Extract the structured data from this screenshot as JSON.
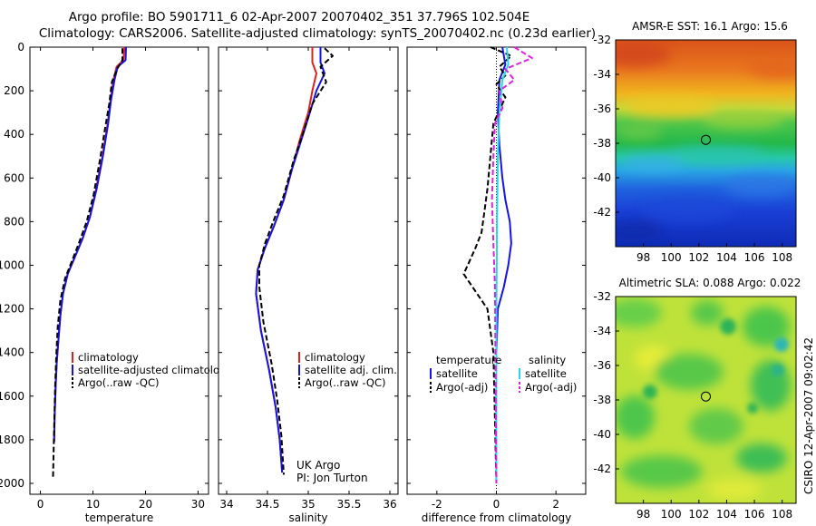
{
  "title_line1": "Argo profile: BO 5901711_6 02-Apr-2007 20070402_351 37.796S 102.504E",
  "title_line2": "Climatology: CARS2006. Satellite-adjusted climatology: synTS_20070402.nc (0.23d earlier)",
  "sst_title": "AMSR-E SST: 16.1 Argo: 15.6",
  "sla_title": "Altimetric SLA: 0.088 Argo: 0.022",
  "credit": "CSIRO 12-Apr-2007 09:02:42",
  "colors": {
    "climatology": "#e0201a",
    "satellite": "#1414e6",
    "argo": "#000000",
    "satellite_salinity": "#22d8ee",
    "argo_salinity": "#e020e0"
  },
  "chart_data": [
    {
      "type": "line",
      "name": "temperature-panel",
      "xlabel": "temperature",
      "ylabel": "",
      "xlim": [
        -2,
        32
      ],
      "ylim": [
        2050,
        0
      ],
      "xticks": [
        "0",
        "10",
        "20",
        "30"
      ],
      "xtick_values": [
        0,
        10,
        20,
        30
      ],
      "yticks": [
        "0",
        "200",
        "400",
        "600",
        "800",
        "1000",
        "1200",
        "1400",
        "1600",
        "1800",
        "2000"
      ],
      "ytick_values": [
        0,
        200,
        400,
        600,
        800,
        1000,
        1200,
        1400,
        1600,
        1800,
        2000
      ],
      "legend": [
        "climatology",
        "satellite-adjusted climatology",
        "Argo(..raw -QC)"
      ],
      "series": [
        {
          "name": "climatology",
          "style": "solid",
          "color": "#e0201a",
          "x": [
            16.0,
            15.8,
            14.5,
            13.9,
            13.3,
            12.8,
            11.8,
            10.6,
            9.4,
            8.0,
            6.6,
            5.2,
            4.3,
            3.8,
            3.4,
            3.1,
            2.9,
            2.7,
            2.6
          ],
          "y": [
            0,
            60,
            90,
            150,
            250,
            350,
            500,
            650,
            780,
            880,
            960,
            1040,
            1130,
            1230,
            1350,
            1450,
            1550,
            1700,
            1810
          ]
        },
        {
          "name": "satellite-adjusted climatology",
          "style": "solid",
          "color": "#1414e6",
          "x": [
            16.3,
            16.2,
            14.7,
            14.1,
            13.4,
            12.9,
            11.9,
            10.7,
            9.4,
            8.0,
            6.6,
            5.2,
            4.3,
            3.8,
            3.4,
            3.1,
            2.9,
            2.7,
            2.6
          ],
          "y": [
            0,
            60,
            90,
            150,
            250,
            350,
            500,
            650,
            780,
            880,
            960,
            1040,
            1130,
            1230,
            1350,
            1450,
            1550,
            1700,
            1810
          ]
        },
        {
          "name": "Argo(..raw -QC)",
          "style": "dashed",
          "color": "#000000",
          "x": [
            15.6,
            15.6,
            14.6,
            13.6,
            13.1,
            12.4,
            11.3,
            10.1,
            8.8,
            7.3,
            6.0,
            4.7,
            3.8,
            3.3,
            3.0,
            2.8,
            2.6,
            2.4
          ],
          "y": [
            5,
            60,
            100,
            160,
            260,
            360,
            520,
            680,
            800,
            900,
            980,
            1060,
            1160,
            1280,
            1420,
            1560,
            1750,
            1970
          ]
        }
      ]
    },
    {
      "type": "line",
      "name": "salinity-panel",
      "xlabel": "salinity",
      "xlim": [
        33.9,
        36.1
      ],
      "ylim": [
        2050,
        0
      ],
      "xticks": [
        "34",
        "34.5",
        "35",
        "35.5",
        "36"
      ],
      "xtick_values": [
        34,
        34.5,
        35,
        35.5,
        36
      ],
      "legend": [
        "climatology",
        "satellite adj. clim.",
        "Argo(..raw -QC)"
      ],
      "annotation": [
        "UK Argo",
        "PI: Jon Turton"
      ],
      "series": [
        {
          "name": "climatology",
          "style": "solid",
          "color": "#e0201a",
          "x": [
            35.05,
            35.05,
            35.1,
            35.05,
            35.0,
            34.9,
            34.8,
            34.7,
            34.58,
            34.47,
            34.38,
            34.36,
            34.42,
            34.52,
            34.6,
            34.65,
            34.68
          ],
          "y": [
            0,
            70,
            120,
            200,
            300,
            420,
            560,
            700,
            820,
            920,
            1020,
            1130,
            1300,
            1480,
            1650,
            1800,
            1950
          ]
        },
        {
          "name": "satellite adj. clim.",
          "style": "solid",
          "color": "#1414e6",
          "x": [
            35.15,
            35.15,
            35.2,
            35.1,
            35.02,
            34.92,
            34.8,
            34.7,
            34.58,
            34.47,
            34.38,
            34.36,
            34.42,
            34.52,
            34.6,
            34.65,
            34.68
          ],
          "y": [
            0,
            70,
            120,
            200,
            300,
            420,
            560,
            700,
            820,
            920,
            1020,
            1130,
            1300,
            1480,
            1650,
            1800,
            1950
          ]
        },
        {
          "name": "Argo(..raw -QC)",
          "style": "dashed",
          "color": "#000000",
          "x": [
            35.2,
            35.3,
            35.15,
            35.22,
            35.05,
            34.95,
            34.82,
            34.7,
            34.57,
            34.47,
            34.4,
            34.4,
            34.45,
            34.55,
            34.62,
            34.67,
            34.7
          ],
          "y": [
            5,
            40,
            90,
            160,
            260,
            380,
            520,
            680,
            800,
            900,
            1000,
            1100,
            1260,
            1450,
            1620,
            1780,
            1960
          ]
        }
      ]
    },
    {
      "type": "line",
      "name": "difference-panel",
      "xlabel": "difference from climatology",
      "xlim": [
        -3,
        3
      ],
      "ylim": [
        2050,
        0
      ],
      "xticks": [
        "-2",
        "0",
        "2"
      ],
      "xtick_values": [
        -2,
        0,
        2
      ],
      "legend_headers": [
        "temperature",
        "salinity"
      ],
      "legend": [
        "satellite",
        "Argo(-adj)",
        "satellite",
        "Argo(-adj)"
      ],
      "series": [
        {
          "name": "temperature satellite",
          "style": "solid",
          "color": "#1414e6",
          "x": [
            0.2,
            0.3,
            0.1,
            0.05,
            0.1,
            0.2,
            0.3,
            0.45,
            0.5,
            0.4,
            0.25,
            0.05,
            0.0,
            0.0
          ],
          "y": [
            0,
            80,
            150,
            300,
            450,
            600,
            700,
            800,
            900,
            1000,
            1100,
            1200,
            1400,
            2000
          ]
        },
        {
          "name": "temperature Argo(-adj)",
          "style": "dashed",
          "color": "#000000",
          "x": [
            -0.2,
            0.5,
            0.1,
            0.3,
            0.0,
            0.3,
            -0.1,
            -0.2,
            -0.3,
            -0.4,
            -0.5,
            -0.7,
            -0.9,
            -1.1,
            -0.8,
            -0.3,
            -0.1,
            0.0
          ],
          "y": [
            0,
            40,
            90,
            130,
            170,
            230,
            350,
            500,
            650,
            750,
            850,
            920,
            980,
            1040,
            1100,
            1200,
            1400,
            2000
          ]
        },
        {
          "name": "salinity satellite",
          "style": "solid",
          "color": "#22d8ee",
          "x": [
            0.35,
            0.4,
            0.2,
            0.1,
            0.05,
            0.02,
            0.0,
            0.0
          ],
          "y": [
            0,
            80,
            150,
            300,
            500,
            800,
            1200,
            2000
          ]
        },
        {
          "name": "salinity Argo(-adj)",
          "style": "dashed",
          "color": "#e020e0",
          "x": [
            0.6,
            1.2,
            0.3,
            0.6,
            0.1,
            0.2,
            -0.05,
            -0.1,
            -0.15,
            -0.1,
            -0.05,
            0.0
          ],
          "y": [
            0,
            50,
            100,
            150,
            200,
            280,
            350,
            500,
            700,
            900,
            1100,
            2000
          ]
        }
      ]
    },
    {
      "type": "heatmap",
      "name": "sst-map",
      "title": "AMSR-E SST: 16.1 Argo: 15.6",
      "xlim": [
        96,
        109
      ],
      "ylim": [
        -44,
        -32
      ],
      "xticks": [
        "98",
        "100",
        "102",
        "104",
        "106",
        "108"
      ],
      "xtick_values": [
        98,
        100,
        102,
        104,
        106,
        108
      ],
      "yticks": [
        "-32",
        "-34",
        "-36",
        "-38",
        "-40",
        "-42"
      ],
      "ytick_values": [
        -32,
        -34,
        -36,
        -38,
        -40,
        -42
      ],
      "marker": {
        "lon": 102.5,
        "lat": -37.8
      }
    },
    {
      "type": "heatmap",
      "name": "sla-map",
      "title": "Altimetric SLA: 0.088 Argo: 0.022",
      "xlim": [
        96,
        109
      ],
      "ylim": [
        -44,
        -32
      ],
      "xticks": [
        "98",
        "100",
        "102",
        "104",
        "106",
        "108"
      ],
      "xtick_values": [
        98,
        100,
        102,
        104,
        106,
        108
      ],
      "yticks": [
        "-32",
        "-34",
        "-36",
        "-38",
        "-40",
        "-42"
      ],
      "ytick_values": [
        -32,
        -34,
        -36,
        -38,
        -40,
        -42
      ],
      "marker": {
        "lon": 102.5,
        "lat": -37.8
      }
    }
  ]
}
